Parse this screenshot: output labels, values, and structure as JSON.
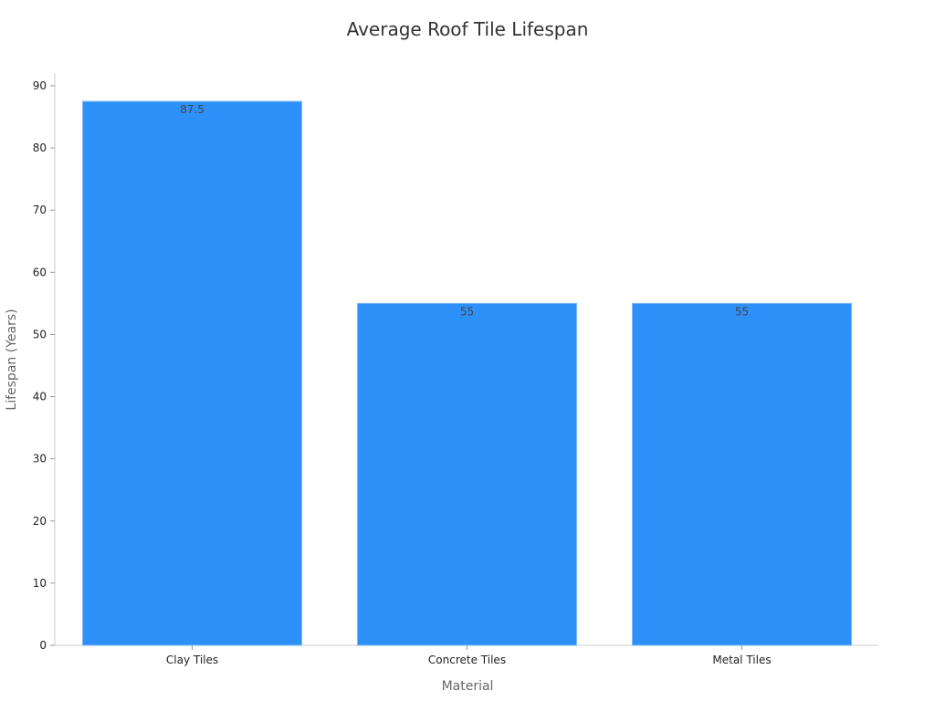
{
  "chart_data": {
    "type": "bar",
    "title": "Average Roof Tile Lifespan",
    "xlabel": "Material",
    "ylabel": "Lifespan (Years)",
    "categories": [
      "Clay Tiles",
      "Concrete Tiles",
      "Metal Tiles"
    ],
    "values": [
      87.5,
      55,
      55
    ],
    "data_labels": [
      "87.5",
      "55",
      "55"
    ],
    "ylim": [
      0,
      92
    ],
    "yticks": [
      0,
      10,
      20,
      30,
      40,
      50,
      60,
      70,
      80,
      90
    ],
    "grid": false,
    "legend": "none",
    "bar_color": "#2e91fa"
  }
}
